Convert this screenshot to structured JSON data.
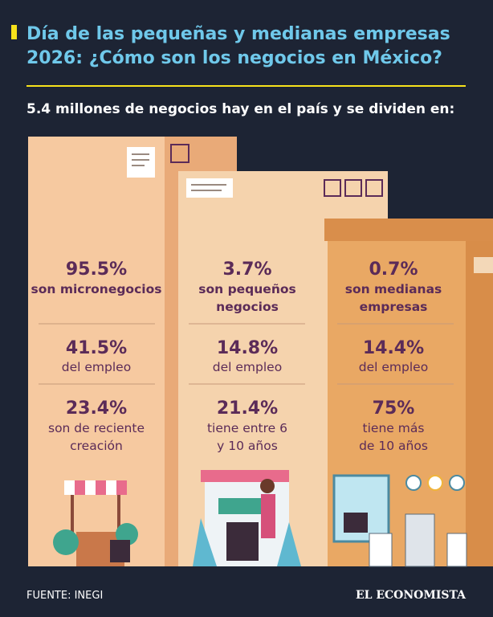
{
  "header": {
    "title": [
      "Día de las pequeñas y medianas empresas",
      "2026: ¿Cómo son los negocios en México?"
    ],
    "subtitle": "5.4 millones de negocios hay en el país y se dividen en:"
  },
  "columns": [
    {
      "stats": [
        {
          "value": "95.5%",
          "label": [
            "son micronegocios"
          ]
        },
        {
          "value": "41.5%",
          "label": [
            "del empleo"
          ]
        },
        {
          "value": "23.4%",
          "label": [
            "son de reciente",
            "creación"
          ]
        }
      ]
    },
    {
      "stats": [
        {
          "value": "3.7%",
          "label": [
            "son pequeños",
            "negocios"
          ]
        },
        {
          "value": "14.8%",
          "label": [
            "del empleo"
          ]
        },
        {
          "value": "21.4%",
          "label": [
            "tiene entre 6",
            "y 10 años"
          ]
        }
      ]
    },
    {
      "stats": [
        {
          "value": "0.7%",
          "label": [
            "son medianas",
            "empresas"
          ]
        },
        {
          "value": "14.4%",
          "label": [
            "del empleo"
          ]
        },
        {
          "value": "75%",
          "label": [
            "tiene más",
            "de 10 años"
          ]
        }
      ]
    }
  ],
  "footer": {
    "source": "FUENTE: INEGI",
    "brand": "EL ECONOMISTA"
  }
}
